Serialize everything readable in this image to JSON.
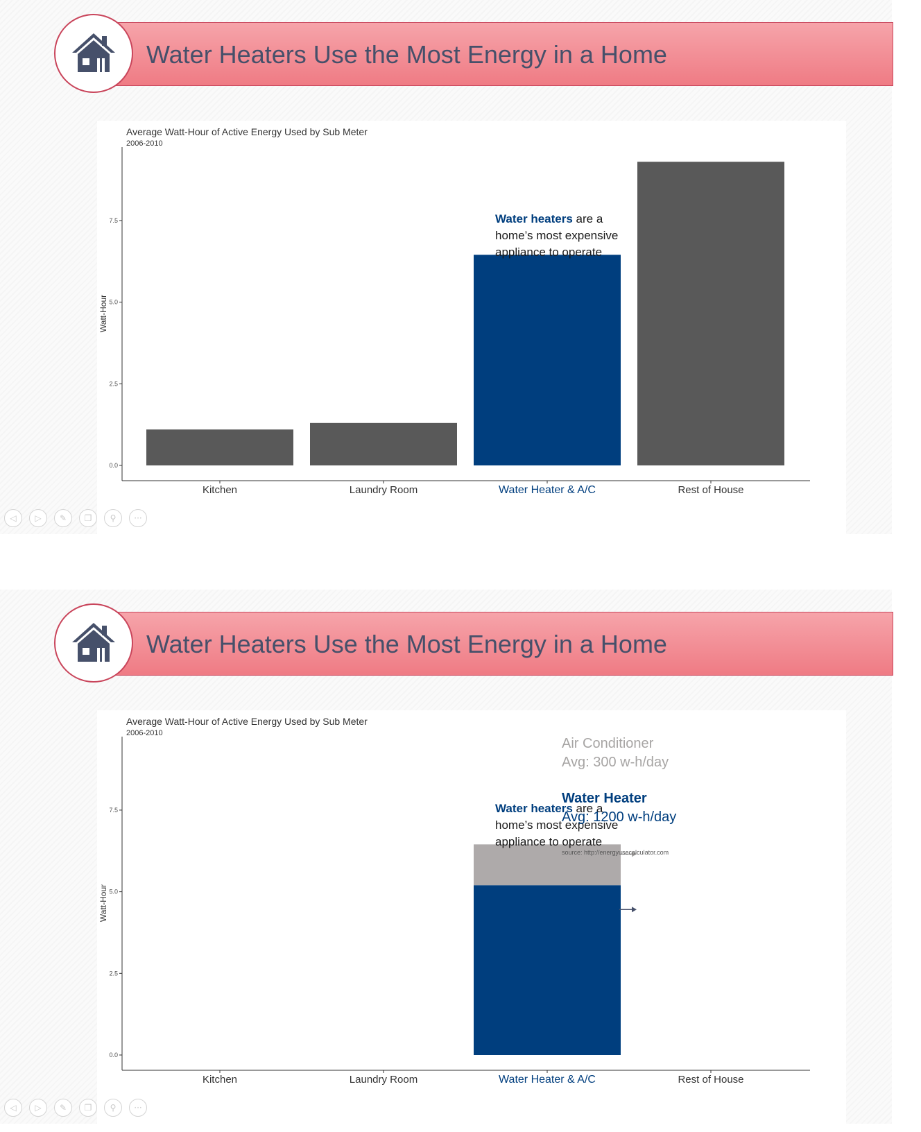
{
  "slides": [
    {
      "title": "Water Heaters Use the Most Energy in a Home",
      "icon": "house-icon",
      "chart_title": "Average Watt-Hour of Active Energy Used by Sub Meter",
      "chart_subtitle": "2006-2010",
      "annotation": {
        "highlight": "Water heaters",
        "line1_rest": " are a",
        "line2": "home’s most expensive",
        "line3": "appliance to operate"
      }
    },
    {
      "title": "Water Heaters Use the Most Energy in a Home",
      "icon": "house-icon",
      "chart_title": "Average Watt-Hour of Active Energy Used by Sub Meter",
      "chart_subtitle": "2006-2010",
      "annotation": {
        "highlight": "Water heaters",
        "line1_rest": " are a",
        "line2": "home’s most expensive",
        "line3": "appliance to operate"
      },
      "callouts": {
        "ac_name": "Air Conditioner",
        "ac_avg": "Avg: 300 w-h/day",
        "wh_name": "Water Heater",
        "wh_avg": "Avg: 1200 w-h/day",
        "source": "source: http://energyusecalculator.com"
      }
    }
  ],
  "colors": {
    "bar_gray": "#595959",
    "bar_highlight": "#003e7e",
    "bar_ac": "#aeaaaa",
    "banner_top": "#f6a4aa",
    "banner_bottom": "#ef7b84",
    "title_text": "#46506a"
  },
  "controls": [
    "prev-icon",
    "next-icon",
    "pen-icon",
    "copy-icon",
    "zoom-icon",
    "more-icon"
  ],
  "chart_data": [
    {
      "type": "bar",
      "title": "Average Watt-Hour of Active Energy Used by Sub Meter",
      "subtitle": "2006-2010",
      "categories": [
        "Kitchen",
        "Laundry Room",
        "Water Heater & A/C",
        "Rest of House"
      ],
      "values": [
        1.1,
        1.3,
        6.45,
        9.3
      ],
      "highlight_index": 2,
      "xlabel": "",
      "ylabel": "Watt-Hour",
      "yticks": [
        "0.0",
        "2.5",
        "5.0",
        "7.5"
      ],
      "ylim": [
        0,
        9.75
      ],
      "grid": false
    },
    {
      "type": "bar",
      "stacked": true,
      "title": "Average Watt-Hour of Active Energy Used by Sub Meter",
      "subtitle": "2006-2010",
      "categories": [
        "Kitchen",
        "Laundry Room",
        "Water Heater & A/C",
        "Rest of House"
      ],
      "series": [
        {
          "name": "Water Heater",
          "values": [
            null,
            null,
            5.2,
            null
          ]
        },
        {
          "name": "Air Conditioner",
          "values": [
            null,
            null,
            1.25,
            null
          ]
        }
      ],
      "highlight_index": 2,
      "xlabel": "",
      "ylabel": "Watt-Hour",
      "yticks": [
        "0.0",
        "2.5",
        "5.0",
        "7.5"
      ],
      "ylim": [
        0,
        9.75
      ],
      "grid": false
    }
  ]
}
